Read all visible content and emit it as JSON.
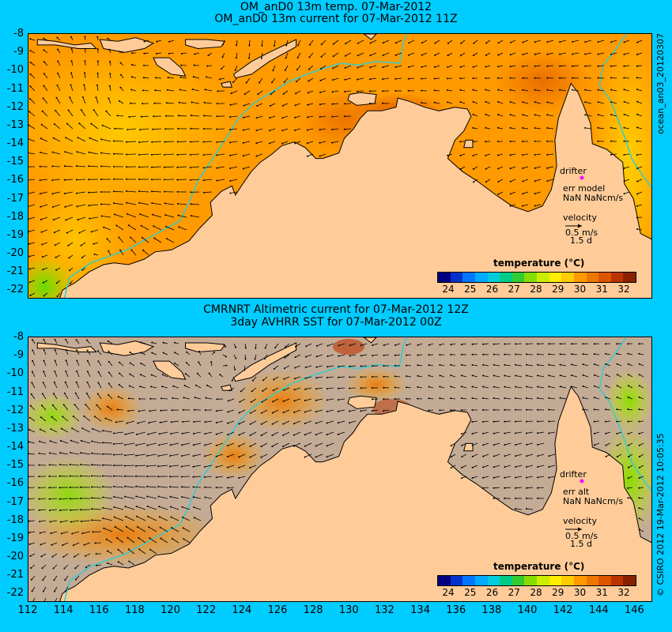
{
  "colors": {
    "background": "#00ccff",
    "land": "#ffcc99",
    "no_data": "#c4ab96",
    "coast_line": "#000000",
    "isobath": "#33cccc",
    "drifter": "#ff00ff",
    "colorbar": [
      "#000080",
      "#0033cc",
      "#0077ff",
      "#00aaff",
      "#00ccdd",
      "#00cc88",
      "#33cc33",
      "#88dd00",
      "#ccee00",
      "#ffee00",
      "#ffcc00",
      "#ff9900",
      "#ee7700",
      "#dd5500",
      "#bb3300",
      "#882200"
    ]
  },
  "axes": {
    "x_ticks": [
      "112",
      "114",
      "116",
      "118",
      "120",
      "122",
      "124",
      "126",
      "128",
      "130",
      "132",
      "134",
      "136",
      "138",
      "140",
      "142",
      "144",
      "146"
    ],
    "y_ticks": [
      "-8",
      "-9",
      "-10",
      "-11",
      "-12",
      "-13",
      "-14",
      "-15",
      "-16",
      "-17",
      "-18",
      "-19",
      "-20",
      "-21",
      "-22"
    ],
    "lon_range": [
      112,
      147
    ],
    "lat_range": [
      -22.5,
      -8
    ]
  },
  "top_panel": {
    "title_line1": "OM_anD0 13m temp. 07-Mar-2012",
    "title_line2": "OM_anD0 13m current for 07-Mar-2012 11Z",
    "drifter_label": "drifter",
    "err_label": "err model",
    "err_value": "NaN NaNcm/s",
    "velocity_label": "velocity",
    "velocity_scale": "0.5 m/s",
    "velocity_days": "1.5 d",
    "colorbar_title": "temperature (°C)",
    "side_label": "ocean_an03_20120307"
  },
  "bottom_panel": {
    "title_line1": "CMRNRT Altimetric current for 07-Mar-2012 12Z",
    "title_line2": "3day AVHRR SST for 07-Mar-2012 00Z",
    "drifter_label": "drifter",
    "err_label": "err alt",
    "err_value": "NaN NaNcm/s",
    "velocity_label": "velocity",
    "velocity_scale": "0.5 m/s",
    "velocity_days": "1.5 d",
    "colorbar_title": "temperature (°C)",
    "side_label": "© CSIRO 2012  19-Mar-2012 10:05:35"
  },
  "colorbar_ticks": [
    "24",
    "25",
    "26",
    "27",
    "28",
    "29",
    "30",
    "31",
    "32"
  ]
}
